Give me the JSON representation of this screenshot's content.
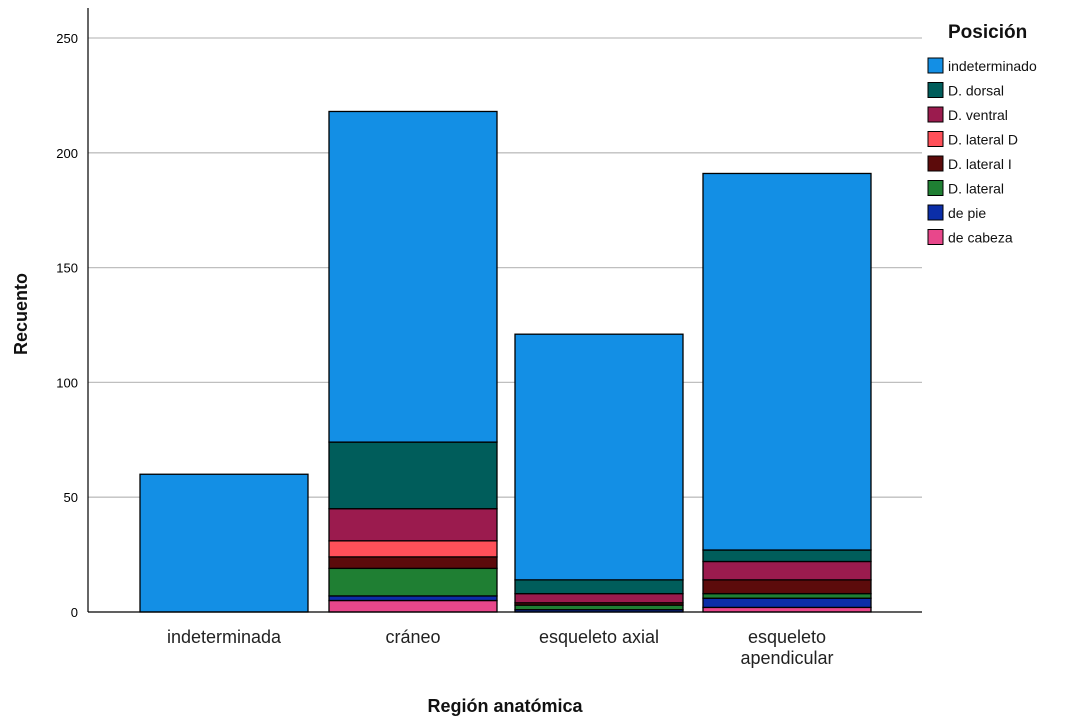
{
  "chart_data": {
    "type": "bar",
    "stacked": true,
    "categories": [
      [
        "indeterminada"
      ],
      [
        "cráneo"
      ],
      [
        "esqueleto axial"
      ],
      [
        "esqueleto",
        "apendicular"
      ]
    ],
    "ylabel": "Recuento",
    "xlabel": "Región anatómica",
    "ylim": [
      0,
      260
    ],
    "yticks": [
      0,
      50,
      100,
      150,
      200,
      250
    ],
    "grid": true,
    "legend_title": "Posición",
    "legend_position": "top-right",
    "series": [
      {
        "name": "de cabeza",
        "color": "#e8478b",
        "values": [
          0,
          5,
          0,
          2
        ]
      },
      {
        "name": "de pie",
        "color": "#0b2ea8",
        "values": [
          0,
          2,
          1,
          4
        ]
      },
      {
        "name": "D. lateral",
        "color": "#1f7f33",
        "values": [
          0,
          12,
          2,
          2
        ]
      },
      {
        "name": "D. lateral I",
        "color": "#5c0b0b",
        "values": [
          0,
          5,
          1,
          6
        ]
      },
      {
        "name": "D. lateral D",
        "color": "#ff5059",
        "values": [
          0,
          7,
          0,
          0
        ]
      },
      {
        "name": "D. ventral",
        "color": "#9b1b4e",
        "values": [
          0,
          14,
          4,
          8
        ]
      },
      {
        "name": "D. dorsal",
        "color": "#005d5b",
        "values": [
          0,
          29,
          6,
          5
        ]
      },
      {
        "name": "indeterminado",
        "color": "#138fe5",
        "values": [
          60,
          144,
          107,
          164
        ]
      }
    ],
    "legend_order": [
      "indeterminado",
      "D. dorsal",
      "D. ventral",
      "D. lateral D",
      "D. lateral I",
      "D. lateral",
      "de pie",
      "de cabeza"
    ],
    "colors": {
      "gridline": "#bfbfbf",
      "axis": "#000000",
      "bar_outline": "#000000"
    }
  }
}
